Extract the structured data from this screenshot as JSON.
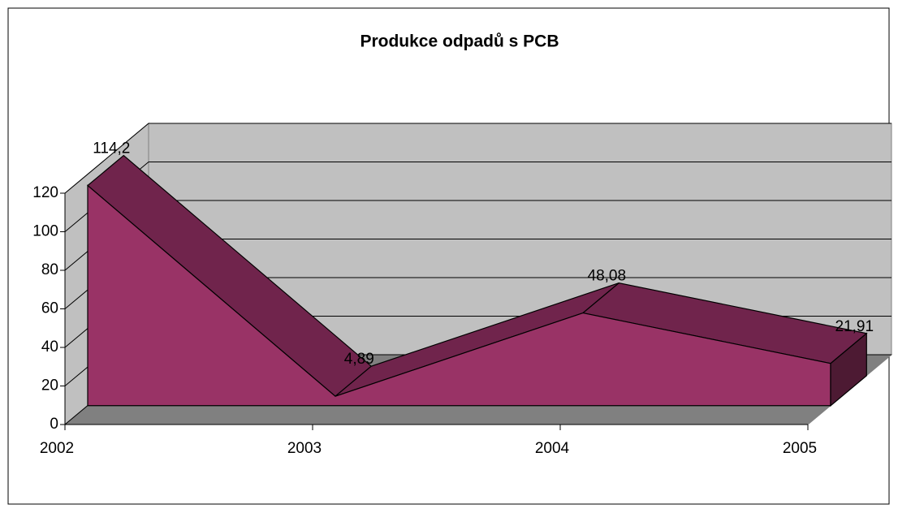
{
  "chart_data": {
    "type": "area",
    "title": "Produkce odpadů s PCB",
    "categories": [
      "2002",
      "2003",
      "2004",
      "2005"
    ],
    "values": [
      114.2,
      4.89,
      48.08,
      21.91
    ],
    "value_labels": [
      "114,2",
      "4,89",
      "48,08",
      "21,91"
    ],
    "color": "#993366",
    "ylim": [
      0,
      120
    ],
    "yticks": [
      0,
      20,
      40,
      60,
      80,
      100,
      120
    ],
    "grid": true
  }
}
